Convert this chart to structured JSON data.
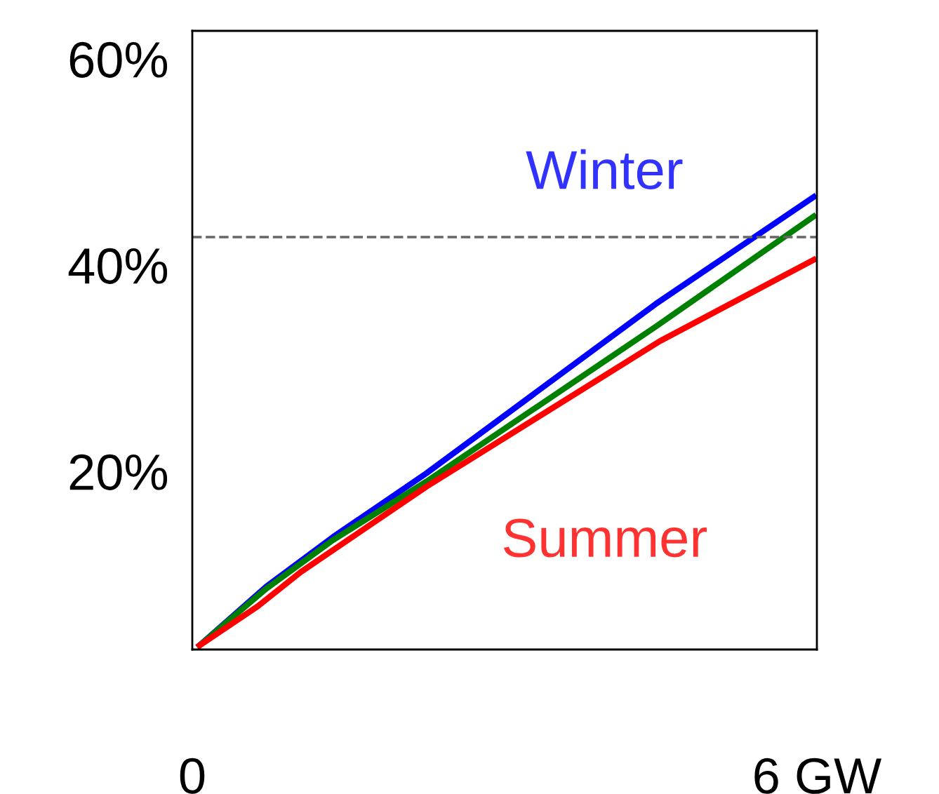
{
  "chart_data": {
    "type": "line",
    "xlim": [
      0,
      6
    ],
    "xticks": [
      0,
      {
        "value": 6,
        "label": "6 GW"
      }
    ],
    "ylim": [
      0,
      60
    ],
    "yticks": [
      {
        "value": 20,
        "label": "20%"
      },
      {
        "value": 40,
        "label": "40%"
      },
      {
        "value": 60,
        "label": "60%"
      }
    ],
    "series": [
      {
        "name": "Winter",
        "color": "#0000ff",
        "x": [
          0.07,
          0.71,
          1.35,
          2.25,
          4.45,
          5.97
        ],
        "values": [
          0.4,
          6.1,
          10.9,
          17.1,
          33.5,
          43.9
        ]
      },
      {
        "color": "#008000",
        "x": [
          0.07,
          0.71,
          1.35,
          2.25,
          4.45,
          5.97
        ],
        "values": [
          0.4,
          5.9,
          10.6,
          16.3,
          31.3,
          42.0
        ]
      },
      {
        "name": "Summer",
        "color": "#ff0000",
        "x": [
          0.07,
          0.63,
          1.04,
          2.25,
          4.49,
          5.97
        ],
        "values": [
          0.4,
          4.2,
          7.5,
          15.8,
          29.9,
          37.8
        ]
      }
    ],
    "ref_lines": [
      {
        "axis": "y",
        "value": 40,
        "color": "#666666",
        "line_style": "dashed"
      }
    ],
    "grid": false,
    "legend": false,
    "marker": "none",
    "line_style": "solid"
  }
}
